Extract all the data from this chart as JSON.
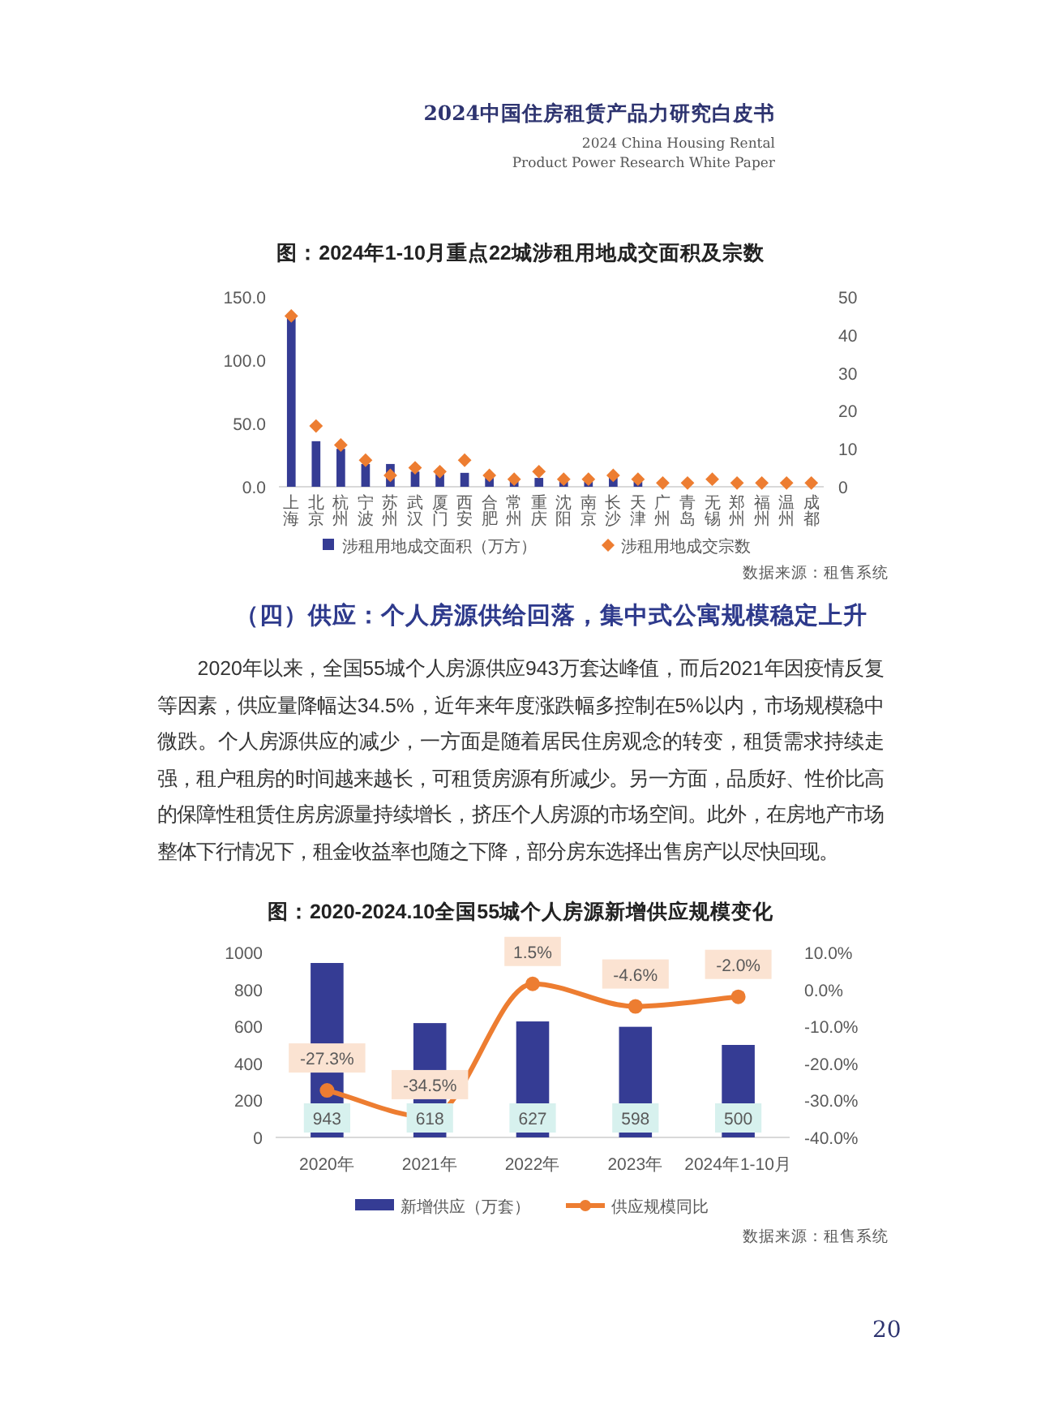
{
  "chart_data": [
    {
      "type": "other",
      "title": "2024中国住房租赁产品力研究白皮书",
      "annotations": [
        "2024 China Housing Rental",
        "Product Power Research White Paper"
      ]
    },
    {
      "type": "bar",
      "title": "图：2024年1-10月重点22城涉租用地成交面积及宗数",
      "categories": [
        "上海",
        "北京",
        "杭州",
        "宁波",
        "苏州",
        "武汉",
        "厦门",
        "西安",
        "合肥",
        "常州",
        "重庆",
        "沈阳",
        "南京",
        "长沙",
        "天津",
        "广州",
        "青岛",
        "无锡",
        "郑州",
        "福州",
        "温州",
        "成都"
      ],
      "series": [
        {
          "name": "涉租用地成交面积（万方）",
          "type": "bar",
          "color": "#353c94",
          "values": [
            135,
            36,
            30,
            18,
            18,
            12,
            10,
            11,
            7,
            5,
            7,
            4,
            4,
            7,
            4,
            null,
            null,
            null,
            null,
            null,
            null,
            null
          ]
        },
        {
          "name": "涉租用地成交宗数",
          "type": "scatter",
          "axis": "y2",
          "color": "#ed7d31",
          "marker": "diamond",
          "values": [
            45,
            16,
            11,
            7,
            3,
            5,
            4,
            7,
            3,
            2,
            4,
            2,
            2,
            3,
            2,
            1,
            1,
            2,
            1,
            1,
            1,
            1
          ]
        }
      ],
      "ylim": [
        0,
        150
      ],
      "yticks": [
        {
          "value": 0,
          "label": "0.0"
        },
        {
          "value": 50,
          "label": "50.0"
        },
        {
          "value": 100,
          "label": "100.0"
        },
        {
          "value": 150,
          "label": "150.0"
        }
      ],
      "y2lim": [
        0,
        50
      ],
      "y2ticks": [
        0,
        10,
        20,
        30,
        40,
        50
      ],
      "legend": "bottom",
      "annotations": [
        "数据来源：租售系统"
      ]
    },
    {
      "type": "other",
      "title": "（四）供应：个人房源供给回落，集中式公寓规模稳定上升",
      "annotations": [
        "2020年以来，全国55城个人房源供应943万套达峰值，而后2021年因疫情反复等因素，供应量降幅达34.5%，近年来年度涨跌幅多控制在5%以内，市场规模稳中微跌。个人房源供应的减少，一方面是随着居民住房观念的转变，租赁需求持续走强，租户租房的时间越来越长，可租赁房源有所减少。另一方面，品质好、性价比高的保障性租赁住房房源量持续增长，挤压个人房源的市场空间。此外，在房地产市场整体下行情况下，租金收益率也随之下降，部分房东选择出售房产以尽快回现。"
      ]
    },
    {
      "type": "bar",
      "title": "图：2020-2024.10全国55城个人房源新增供应规模变化",
      "categories": [
        "2020年",
        "2021年",
        "2022年",
        "2023年",
        "2024年1-10月"
      ],
      "series": [
        {
          "name": "新增供应（万套）",
          "type": "bar",
          "color": "#353c94",
          "values": [
            943,
            618,
            627,
            598,
            500
          ],
          "value_labels": [
            "943",
            "618",
            "627",
            "598",
            "500"
          ]
        },
        {
          "name": "供应规模同比",
          "type": "line",
          "axis": "y2",
          "color": "#ed7d31",
          "marker": "circle",
          "values": [
            -27.3,
            -34.5,
            1.5,
            -4.6,
            -2.0
          ],
          "value_labels": [
            "-27.3%",
            "-34.5%",
            "1.5%",
            "-4.6%",
            "-2.0%"
          ]
        }
      ],
      "ylim": [
        0,
        1000
      ],
      "yticks": [
        0,
        200,
        400,
        600,
        800,
        1000
      ],
      "y2lim": [
        -40,
        10
      ],
      "y2ticks": [
        {
          "value": 10,
          "label": "10.0%"
        },
        {
          "value": 0,
          "label": "0.0%"
        },
        {
          "value": -10,
          "label": "-10.0%"
        },
        {
          "value": -20,
          "label": "-20.0%"
        },
        {
          "value": -30,
          "label": "-30.0%"
        },
        {
          "value": -40,
          "label": "-40.0%"
        }
      ],
      "legend": "bottom",
      "annotations": [
        "数据来源：租售系统"
      ]
    },
    {
      "type": "other",
      "annotations": [
        "20"
      ]
    }
  ]
}
